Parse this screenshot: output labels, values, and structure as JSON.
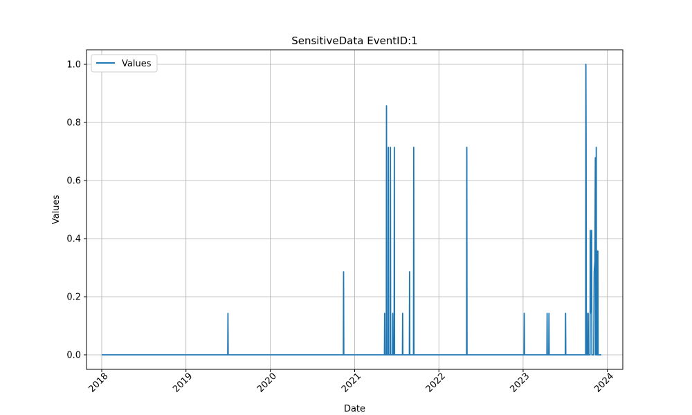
{
  "chart_data": {
    "type": "line",
    "title": "SensitiveData EventID:1",
    "xlabel": "Date",
    "ylabel": "Values",
    "xlim": [
      "2017-10-27",
      "2024-03-08"
    ],
    "ylim": [
      -0.05,
      1.05
    ],
    "x_ticks": [
      "2018",
      "2019",
      "2020",
      "2021",
      "2022",
      "2023",
      "2024"
    ],
    "y_ticks": [
      "0.0",
      "0.2",
      "0.4",
      "0.6",
      "0.8",
      "1.0"
    ],
    "grid": true,
    "legend_position": "top-left",
    "series": [
      {
        "name": "Values",
        "color": "#1f77b4",
        "points": [
          [
            "2018-01-01",
            0
          ],
          [
            "2019-07-01",
            0
          ],
          [
            "2019-07-02",
            0.1429
          ],
          [
            "2019-07-03",
            0
          ],
          [
            "2020-11-13",
            0
          ],
          [
            "2020-11-14",
            0.2857
          ],
          [
            "2020-11-15",
            0
          ],
          [
            "2021-05-10",
            0
          ],
          [
            "2021-05-11",
            0.1429
          ],
          [
            "2021-05-12",
            0
          ],
          [
            "2021-05-18",
            0
          ],
          [
            "2021-05-19",
            0.8571
          ],
          [
            "2021-05-20",
            0
          ],
          [
            "2021-05-26",
            0
          ],
          [
            "2021-05-27",
            0.7143
          ],
          [
            "2021-05-28",
            0
          ],
          [
            "2021-06-04",
            0
          ],
          [
            "2021-06-05",
            0.7143
          ],
          [
            "2021-06-06",
            0
          ],
          [
            "2021-06-14",
            0
          ],
          [
            "2021-06-15",
            0.1429
          ],
          [
            "2021-06-16",
            0
          ],
          [
            "2021-06-21",
            0
          ],
          [
            "2021-06-22",
            0.7143
          ],
          [
            "2021-06-23",
            0
          ],
          [
            "2021-07-27",
            0
          ],
          [
            "2021-07-28",
            0.1429
          ],
          [
            "2021-07-29",
            0
          ],
          [
            "2021-08-26",
            0
          ],
          [
            "2021-08-27",
            0.2857
          ],
          [
            "2021-08-28",
            0
          ],
          [
            "2021-09-13",
            0
          ],
          [
            "2021-09-14",
            0.7143
          ],
          [
            "2021-09-15",
            0
          ],
          [
            "2022-05-01",
            0
          ],
          [
            "2022-05-02",
            0.7143
          ],
          [
            "2022-05-03",
            0
          ],
          [
            "2023-01-05",
            0
          ],
          [
            "2023-01-06",
            0.1429
          ],
          [
            "2023-01-07",
            0
          ],
          [
            "2023-04-14",
            0
          ],
          [
            "2023-04-15",
            0.1429
          ],
          [
            "2023-04-16",
            0
          ],
          [
            "2023-04-22",
            0
          ],
          [
            "2023-04-23",
            0.1429
          ],
          [
            "2023-04-24",
            0
          ],
          [
            "2023-07-03",
            0
          ],
          [
            "2023-07-04",
            0.1429
          ],
          [
            "2023-07-05",
            0
          ],
          [
            "2023-09-29",
            0
          ],
          [
            "2023-09-30",
            1.0
          ],
          [
            "2023-10-01",
            0.7143
          ],
          [
            "2023-10-02",
            0
          ],
          [
            "2023-10-07",
            0
          ],
          [
            "2023-10-08",
            0.1429
          ],
          [
            "2023-10-10",
            0.1429
          ],
          [
            "2023-10-11",
            0
          ],
          [
            "2023-10-18",
            0
          ],
          [
            "2023-10-19",
            0.4286
          ],
          [
            "2023-10-20",
            0.1429
          ],
          [
            "2023-10-25",
            0.4286
          ],
          [
            "2023-10-26",
            0
          ],
          [
            "2023-11-03",
            0
          ],
          [
            "2023-11-04",
            0.1429
          ],
          [
            "2023-11-05",
            0.2857
          ],
          [
            "2023-11-08",
            0.3214
          ],
          [
            "2023-11-10",
            0.6786
          ],
          [
            "2023-11-11",
            0
          ],
          [
            "2023-11-13",
            0
          ],
          [
            "2023-11-14",
            0.7143
          ],
          [
            "2023-11-15",
            0
          ],
          [
            "2023-11-18",
            0
          ],
          [
            "2023-11-19",
            0.3571
          ],
          [
            "2023-11-21",
            0.3571
          ],
          [
            "2023-11-22",
            0
          ],
          [
            "2023-12-06",
            0
          ]
        ]
      }
    ]
  }
}
